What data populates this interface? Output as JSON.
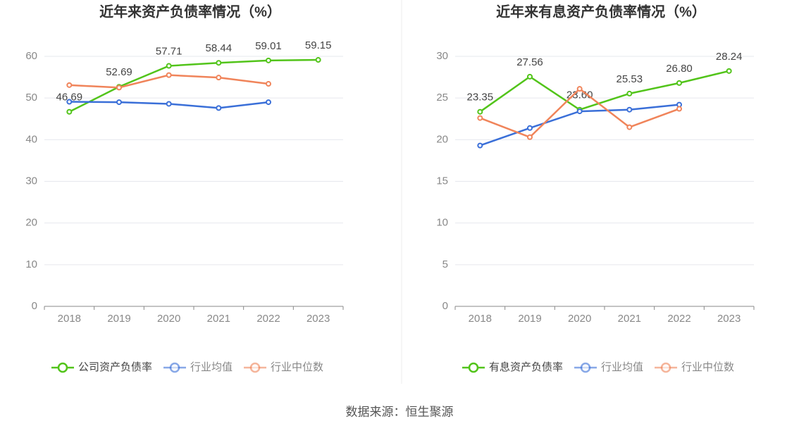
{
  "chart_data": [
    {
      "type": "line",
      "title": "近年来资产负债率情况（%）",
      "categories": [
        "2018",
        "2019",
        "2020",
        "2021",
        "2022",
        "2023"
      ],
      "ylim": [
        0,
        60
      ],
      "yticks": [
        0,
        10,
        20,
        30,
        40,
        50,
        60
      ],
      "grid": true,
      "legend": "bottom",
      "series": [
        {
          "name": "公司资产负债率",
          "color": "#52c41a",
          "values": [
            46.69,
            52.69,
            57.71,
            58.44,
            59.01,
            59.15
          ],
          "value_labels": [
            "46.69",
            "52.69",
            "57.71",
            "58.44",
            "59.01",
            "59.15"
          ]
        },
        {
          "name": "行业均值",
          "color": "#3a6fd8",
          "values": [
            49.1,
            49.0,
            48.6,
            47.6,
            49.0,
            null
          ]
        },
        {
          "name": "行业中位数",
          "color": "#f0845a",
          "values": [
            53.1,
            52.5,
            55.5,
            54.9,
            53.4,
            null
          ]
        }
      ]
    },
    {
      "type": "line",
      "title": "近年来有息资产负债率情况（%）",
      "categories": [
        "2018",
        "2019",
        "2020",
        "2021",
        "2022",
        "2023"
      ],
      "ylim": [
        0,
        30
      ],
      "yticks": [
        0,
        5,
        10,
        15,
        20,
        25,
        30
      ],
      "grid": true,
      "legend": "bottom",
      "series": [
        {
          "name": "有息资产负债率",
          "color": "#52c41a",
          "values": [
            23.35,
            27.56,
            23.6,
            25.53,
            26.8,
            28.24
          ],
          "value_labels": [
            "23.35",
            "27.56",
            "23.60",
            "25.53",
            "26.80",
            "28.24"
          ]
        },
        {
          "name": "行业均值",
          "color": "#3a6fd8",
          "values": [
            19.3,
            21.4,
            23.4,
            23.6,
            24.2,
            null
          ]
        },
        {
          "name": "行业中位数",
          "color": "#f0845a",
          "values": [
            22.6,
            20.3,
            26.1,
            21.5,
            23.7,
            null
          ]
        }
      ]
    }
  ],
  "source": "数据来源：恒生聚源"
}
